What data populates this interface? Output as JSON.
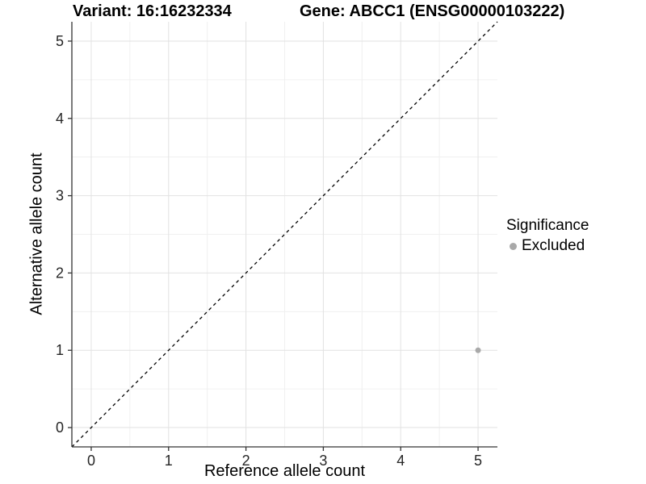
{
  "legend": {
    "title": "Significance",
    "position": "right",
    "items": [
      {
        "label": "Excluded",
        "color": "#a9a9a9",
        "marker": "circle"
      }
    ]
  },
  "chart_data": {
    "type": "scatter",
    "title_left": "Variant: 16:16232334",
    "title_right": "Gene: ABCC1 (ENSG00000103222)",
    "xlabel": "Reference allele count",
    "ylabel": "Alternative allele count",
    "xlim": [
      -0.25,
      5.25
    ],
    "ylim": [
      -0.25,
      5.25
    ],
    "xticks": [
      0,
      1,
      2,
      3,
      4,
      5
    ],
    "yticks": [
      0,
      1,
      2,
      3,
      4,
      5
    ],
    "x_minor_ticks": [
      0.5,
      1.5,
      2.5,
      3.5,
      4.5
    ],
    "y_minor_ticks": [
      0.5,
      1.5,
      2.5,
      3.5,
      4.5
    ],
    "grid": "major+minor",
    "background": "#ffffff",
    "identity_line": {
      "style": "dashed",
      "x1": -0.25,
      "y1": -0.25,
      "x2": 5.25,
      "y2": 5.25,
      "color": "#000000"
    },
    "series": [
      {
        "name": "Excluded",
        "color": "#a9a9a9",
        "points": [
          {
            "x": 5,
            "y": 1
          }
        ],
        "point_radius": 3.5
      }
    ]
  },
  "colors": {
    "grid_major": "#e2e2e2",
    "grid_minor": "#f0f0f0",
    "axis_line": "#333333",
    "tick_mark": "#333333",
    "tick_label": "#262626"
  }
}
